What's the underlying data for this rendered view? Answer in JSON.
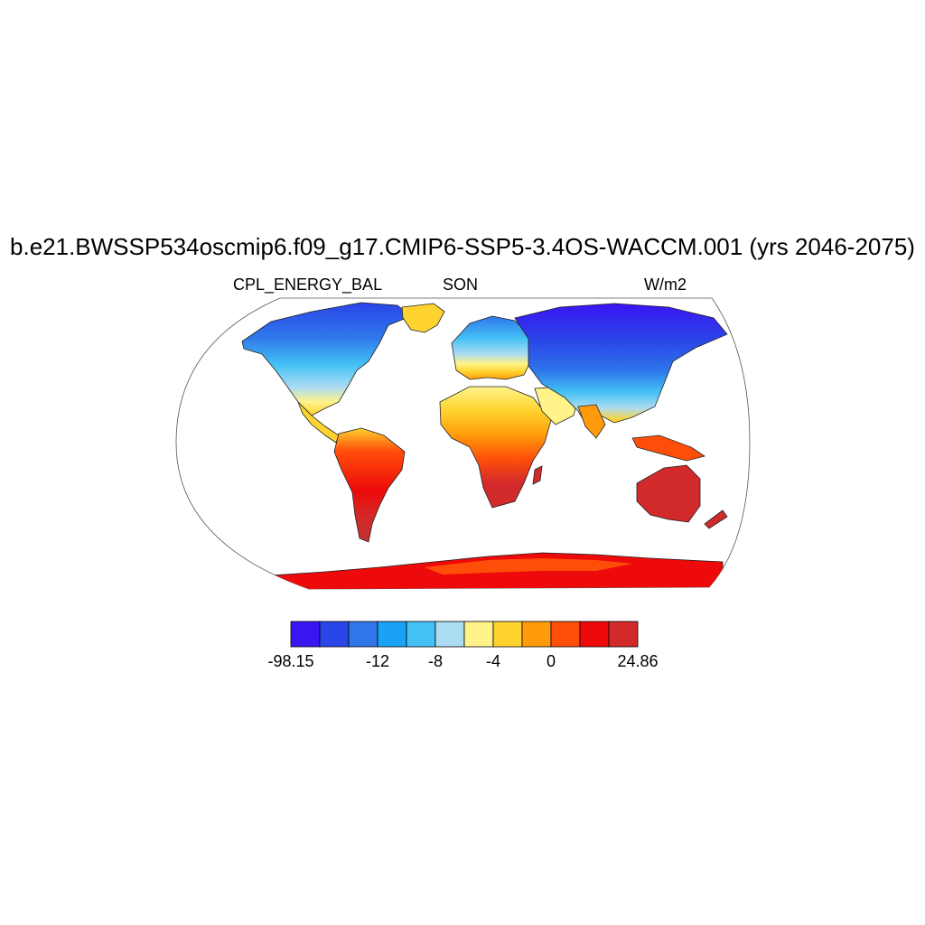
{
  "title": "b.e21.BWSSP534oscmip6.f09_g17.CMIP6-SSP5-3.4OS-WACCM.001 (yrs 2046-2075)",
  "left_label": "CPL_ENERGY_BAL",
  "center_label": "SON",
  "right_label": "W/m2",
  "map": {
    "projection": "Robinson",
    "variable": "CPL_ENERGY_BAL",
    "coverage": "land only",
    "ocean_color": "#ffffff",
    "coastline_color": "#000000"
  },
  "colorbar": {
    "colors": [
      "#3a15f2",
      "#2a45e8",
      "#2e76ea",
      "#1aa2f6",
      "#43c1f5",
      "#acdcf2",
      "#fff38a",
      "#ffd32e",
      "#ff9b0a",
      "#ff4e0a",
      "#ee0a0a",
      "#d22a2a"
    ],
    "tick_labels": [
      "-98.15",
      "-12",
      "-8",
      "-4",
      "0",
      "24.86"
    ]
  }
}
